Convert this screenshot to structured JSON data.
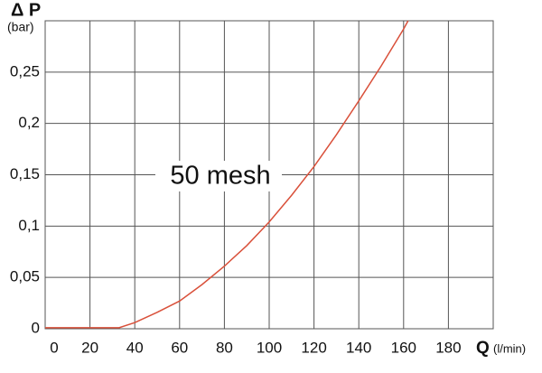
{
  "chart_data": {
    "type": "line",
    "y_label": "Δ P",
    "y_unit": "(bar)",
    "x_label": "Q",
    "x_unit": "(l/min)",
    "x": [
      0,
      20,
      33,
      40,
      50,
      60,
      70,
      80,
      90,
      100,
      110,
      120,
      130,
      140,
      150,
      160,
      162
    ],
    "series": [
      {
        "name": "50 mesh",
        "color": "#d9503a",
        "values": [
          0.001,
          0.001,
          0.001,
          0.006,
          0.016,
          0.027,
          0.043,
          0.061,
          0.081,
          0.104,
          0.13,
          0.158,
          0.189,
          0.222,
          0.256,
          0.292,
          0.3
        ]
      }
    ],
    "xlim": [
      0,
      200
    ],
    "xticks": [
      0,
      20,
      40,
      60,
      80,
      100,
      120,
      140,
      160,
      180
    ],
    "ylim": [
      0,
      0.3
    ],
    "yticks": [
      0,
      {
        "value": 0.05,
        "label": "0,05"
      },
      {
        "value": 0.1,
        "label": "0,1"
      },
      {
        "value": 0.15,
        "label": "0,15"
      },
      {
        "value": 0.2,
        "label": "0,2"
      },
      {
        "value": 0.25,
        "label": "0,25"
      }
    ],
    "grid": true
  }
}
